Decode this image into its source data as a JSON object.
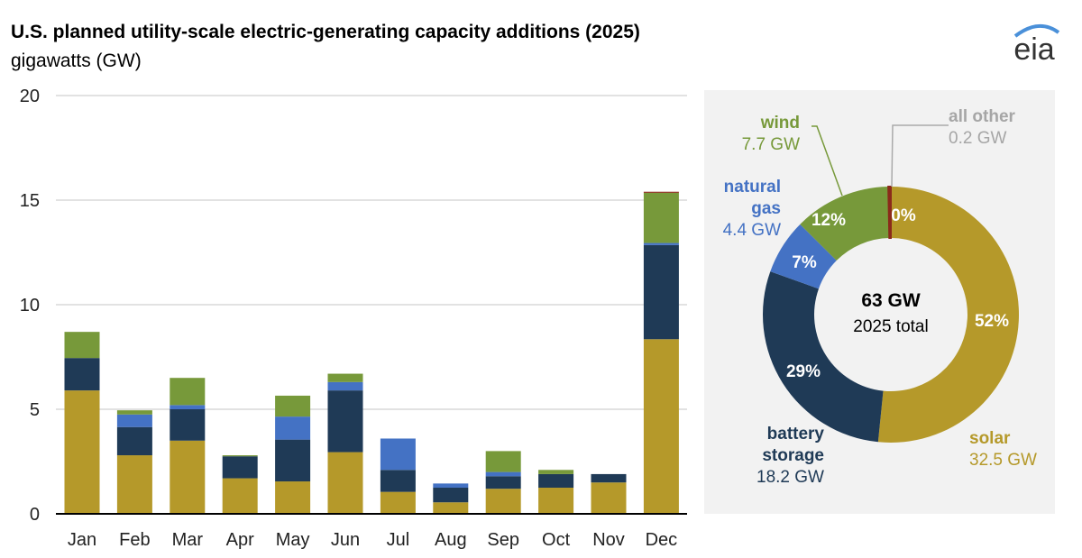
{
  "title": "U.S. planned utility-scale electric-generating capacity additions (2025)",
  "subtitle": "gigawatts (GW)",
  "logo_text": "eia",
  "colors": {
    "solar": "#b5992a",
    "battery storage": "#1f3a56",
    "natural gas": "#4472c4",
    "wind": "#77993a",
    "all other": "#8b2a1a",
    "panel": "#f2f2f2",
    "grid": "#d9d9d9"
  },
  "chart_data": [
    {
      "type": "bar",
      "stacked": true,
      "categories": [
        "Jan",
        "Feb",
        "Mar",
        "Apr",
        "May",
        "Jun",
        "Jul",
        "Aug",
        "Sep",
        "Oct",
        "Nov",
        "Dec"
      ],
      "ylim": [
        0,
        20
      ],
      "yticks": [
        "0",
        "5",
        "10",
        "15",
        "20"
      ],
      "grid": true,
      "series": [
        {
          "key": "solar",
          "values": [
            5.9,
            2.8,
            3.5,
            1.7,
            1.55,
            2.95,
            1.05,
            0.55,
            1.2,
            1.25,
            1.5,
            8.35
          ]
        },
        {
          "key": "battery storage",
          "values": [
            1.55,
            1.35,
            1.5,
            1.05,
            2.0,
            2.95,
            1.05,
            0.7,
            0.6,
            0.65,
            0.4,
            4.5
          ]
        },
        {
          "key": "natural gas",
          "values": [
            0,
            0.6,
            0.2,
            0,
            1.1,
            0.4,
            1.5,
            0.2,
            0.2,
            0,
            0,
            0.1
          ]
        },
        {
          "key": "wind",
          "values": [
            1.25,
            0.2,
            1.3,
            0.05,
            1.0,
            0.4,
            0,
            0,
            1.0,
            0.2,
            0,
            2.4
          ]
        },
        {
          "key": "all other",
          "values": [
            0,
            0,
            0,
            0,
            0,
            0,
            0,
            0,
            0,
            0,
            0,
            0.05
          ]
        }
      ]
    },
    {
      "type": "pie",
      "donut": true,
      "center_value": "63 GW",
      "center_label": "2025 total",
      "slices": [
        {
          "key": "solar",
          "label": "solar",
          "value": 32.5,
          "value_text": "32.5 GW",
          "pct": "52%"
        },
        {
          "key": "battery storage",
          "label": "battery storage",
          "value": 18.2,
          "value_text": "18.2 GW",
          "pct": "29%"
        },
        {
          "key": "natural gas",
          "label": "natural gas",
          "value": 4.4,
          "value_text": "4.4 GW",
          "pct": "7%"
        },
        {
          "key": "wind",
          "label": "wind",
          "value": 7.7,
          "value_text": "7.7 GW",
          "pct": "12%"
        },
        {
          "key": "all other",
          "label": "all other",
          "value": 0.2,
          "value_text": "0.2 GW",
          "pct": "0%"
        }
      ]
    }
  ]
}
